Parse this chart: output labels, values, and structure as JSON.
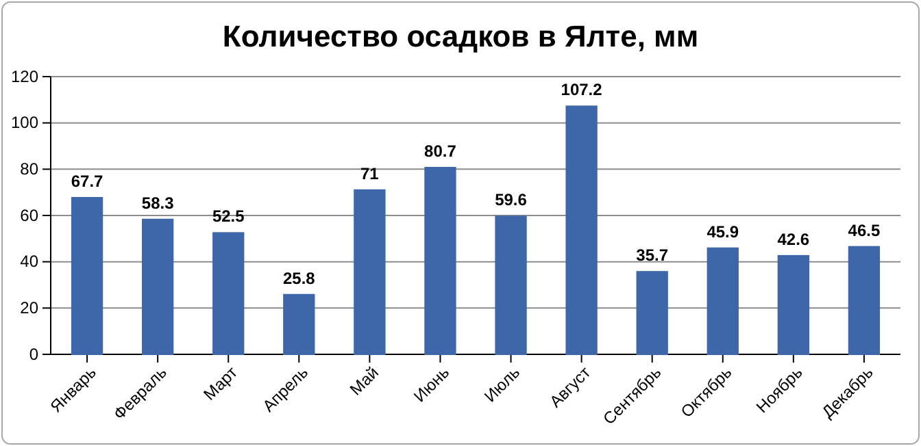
{
  "chart_data": {
    "type": "bar",
    "title": "Количество осадков в Ялте, мм",
    "categories": [
      "Январь",
      "Февраль",
      "Март",
      "Апрель",
      "Май",
      "Июнь",
      "Июль",
      "Август",
      "Сентябрь",
      "Октябрь",
      "Ноябрь",
      "Декабрь"
    ],
    "values": [
      67.7,
      58.3,
      52.5,
      25.8,
      71,
      80.7,
      59.6,
      107.2,
      35.7,
      45.9,
      42.6,
      46.5
    ],
    "color": "#3d67a8",
    "ylim": [
      0,
      120
    ],
    "yticks": [
      0,
      20,
      40,
      60,
      80,
      100,
      120
    ],
    "grid": "y",
    "data_labels": true
  }
}
